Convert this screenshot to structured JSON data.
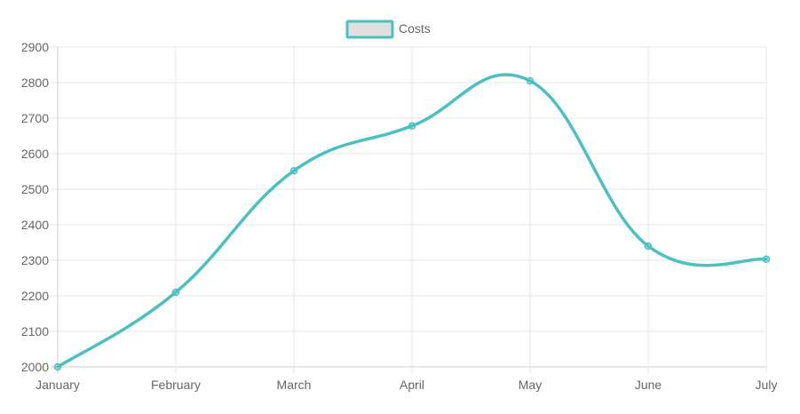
{
  "chart_data": {
    "type": "line",
    "categories": [
      "January",
      "February",
      "March",
      "April",
      "May",
      "June",
      "July"
    ],
    "series": [
      {
        "name": "Costs",
        "values": [
          2000,
          2210,
          2552,
          2678,
          2805,
          2340,
          2303
        ]
      }
    ],
    "ylim": [
      2000,
      2900
    ],
    "yticks": [
      2000,
      2100,
      2200,
      2300,
      2400,
      2500,
      2600,
      2700,
      2800,
      2900
    ],
    "grid": true,
    "legend_position": "top-center",
    "line_color": "#4bc0c0",
    "legend_box_fill": "#e0e0e0",
    "grid_color": "#e6e6e6",
    "text_color": "#666666"
  }
}
